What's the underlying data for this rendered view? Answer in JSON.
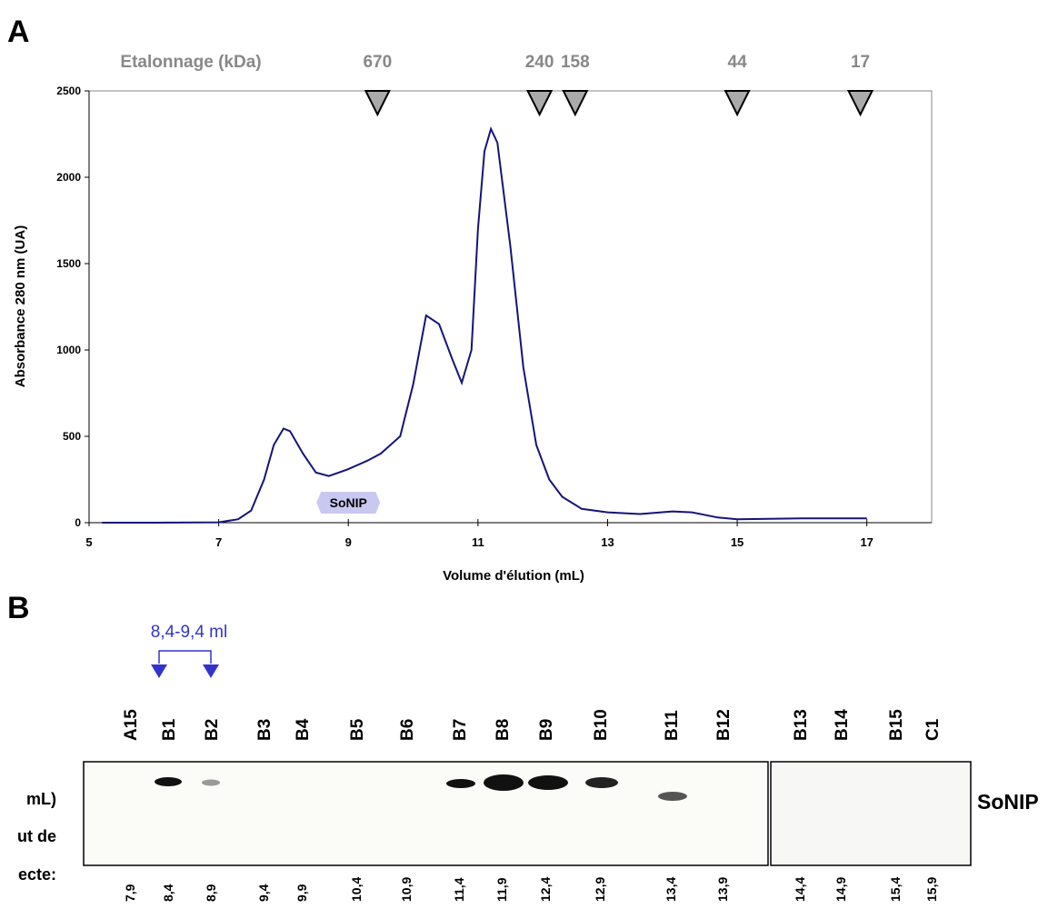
{
  "chart_data": {
    "type": "line",
    "panel_label": "A",
    "xlabel": "Volume d'élution (mL)",
    "ylabel": "Absorbance 280 nm (UA)",
    "xlim": [
      5,
      18
    ],
    "ylim": [
      0,
      2500
    ],
    "xticks": [
      5,
      7,
      9,
      11,
      13,
      15,
      17
    ],
    "yticks": [
      0,
      500,
      1000,
      1500,
      2000,
      2500
    ],
    "x": [
      5.2,
      6,
      7,
      7.3,
      7.5,
      7.7,
      7.85,
      8.0,
      8.1,
      8.3,
      8.5,
      8.7,
      9.0,
      9.3,
      9.5,
      9.8,
      10.0,
      10.2,
      10.4,
      10.6,
      10.75,
      10.9,
      11.0,
      11.1,
      11.2,
      11.3,
      11.5,
      11.7,
      11.9,
      12.1,
      12.3,
      12.6,
      13,
      13.5,
      14,
      14.3,
      14.7,
      15,
      16,
      17
    ],
    "series": [
      {
        "color": "#14147a",
        "values": [
          0,
          0,
          2,
          20,
          70,
          250,
          450,
          545,
          530,
          400,
          290,
          270,
          310,
          360,
          400,
          500,
          800,
          1200,
          1150,
          950,
          810,
          1000,
          1700,
          2150,
          2280,
          2200,
          1600,
          900,
          450,
          250,
          150,
          80,
          60,
          50,
          65,
          60,
          30,
          20,
          25,
          25
        ]
      }
    ],
    "calibration_title": "Etalonnage (kDa)",
    "calibration": [
      {
        "label": "670",
        "x": 9.45
      },
      {
        "label": "240",
        "x": 11.95
      },
      {
        "label": "158",
        "x": 12.5
      },
      {
        "label": "44",
        "x": 15.0
      },
      {
        "label": "17",
        "x": 16.9
      }
    ],
    "annotation": {
      "text": "SoNIP",
      "x": 9.0
    }
  },
  "panel_b": {
    "label": "B",
    "range_label": "8,4-9,4 ml",
    "protein_label": "SoNIP",
    "left_text": [
      "mL)",
      "ut de",
      "ecte:"
    ],
    "lanes": [
      {
        "name": "A15",
        "volume": "7,9"
      },
      {
        "name": "B1",
        "volume": "8,4"
      },
      {
        "name": "B2",
        "volume": "8,9"
      },
      {
        "name": "B3",
        "volume": "9,4"
      },
      {
        "name": "B4",
        "volume": "9,9"
      },
      {
        "name": "B5",
        "volume": "10,4"
      },
      {
        "name": "B6",
        "volume": "10,9"
      },
      {
        "name": "B7",
        "volume": "11,4"
      },
      {
        "name": "B8",
        "volume": "11,9"
      },
      {
        "name": "B9",
        "volume": "12,4"
      },
      {
        "name": "B10",
        "volume": "12,9"
      },
      {
        "name": "B11",
        "volume": "13,4"
      },
      {
        "name": "B12",
        "volume": "13,9"
      },
      {
        "name": "B13",
        "volume": "14,4"
      },
      {
        "name": "B14",
        "volume": "14,9"
      },
      {
        "name": "B15",
        "volume": "15,4"
      },
      {
        "name": "C1",
        "volume": "15,9"
      }
    ]
  }
}
